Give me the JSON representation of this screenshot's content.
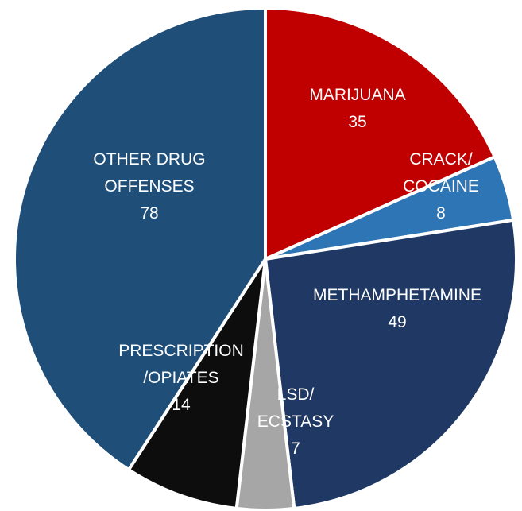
{
  "chart_data": {
    "type": "pie",
    "title": "",
    "start_position": "12 o'clock",
    "direction": "clockwise",
    "slices": [
      {
        "label_lines": [
          "MARIJUANA"
        ],
        "value": 35,
        "value_text": "35",
        "color": "#c00000"
      },
      {
        "label_lines": [
          "CRACK/",
          "COCAINE"
        ],
        "value": 8,
        "value_text": "8",
        "color": "#2e75b6"
      },
      {
        "label_lines": [
          "METHAMPHETAMINE"
        ],
        "value": 49,
        "value_text": "49",
        "color": "#203864"
      },
      {
        "label_lines": [
          "LSD/",
          "ECSTASY"
        ],
        "value": 7,
        "value_text": "7",
        "color": "#a6a6a6"
      },
      {
        "label_lines": [
          "PRESCRIPTION",
          "/OPIATES"
        ],
        "value": 14,
        "value_text": "14",
        "color": "#0d0d0d"
      },
      {
        "label_lines": [
          "OTHER DRUG",
          "OFFENSES"
        ],
        "value": 78,
        "value_text": "78",
        "color": "#1f4e79"
      }
    ]
  }
}
